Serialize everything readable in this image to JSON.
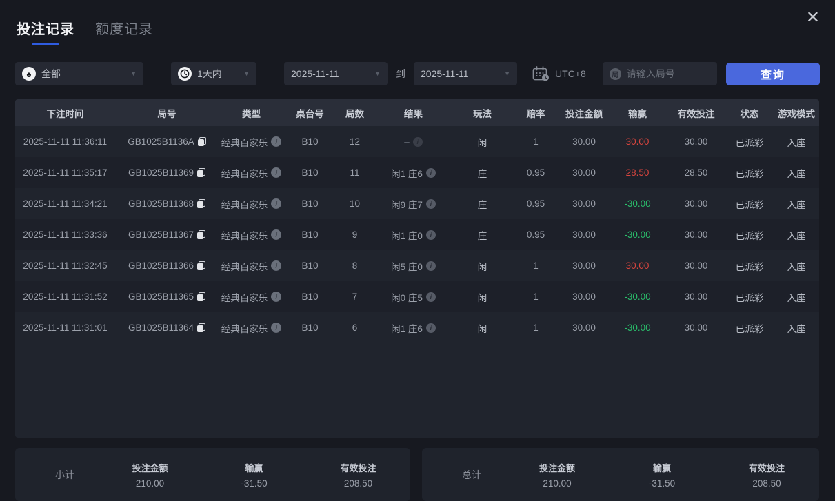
{
  "tabs": [
    {
      "label": "投注记录",
      "active": true
    },
    {
      "label": "额度记录",
      "active": false
    }
  ],
  "close_glyph": "✕",
  "filters": {
    "game_type": {
      "value": "全部",
      "icon": "spade-icon",
      "icon_glyph": "♠"
    },
    "time_range": {
      "value": "1天内",
      "icon": "clock-icon"
    },
    "date_from": "2025-11-11",
    "to_label": "到",
    "date_to": "2025-11-11",
    "timezone": "UTC+8",
    "search": {
      "placeholder": "请输入局号",
      "icon_glyph": "局"
    },
    "query_button": "查询",
    "caret_glyph": "▼"
  },
  "table": {
    "headers": [
      "下注时间",
      "局号",
      "类型",
      "桌台号",
      "局数",
      "结果",
      "玩法",
      "赔率",
      "投注金额",
      "输赢",
      "有效投注",
      "状态",
      "游戏模式"
    ],
    "rows": [
      {
        "time": "2025-11-11 11:36:11",
        "round_id": "GB1025B1136A",
        "type": "经典百家乐",
        "table_no": "B10",
        "shoe": "12",
        "result": "–",
        "result_dim": true,
        "play": "闲",
        "odds": "1",
        "bet_amount": "30.00",
        "win_loss": "30.00",
        "win_loss_sign": "win",
        "valid_bet": "30.00",
        "status": "已派彩",
        "mode": "入座"
      },
      {
        "time": "2025-11-11 11:35:17",
        "round_id": "GB1025B11369",
        "type": "经典百家乐",
        "table_no": "B10",
        "shoe": "11",
        "result": "闲1 庄6",
        "result_dim": false,
        "play": "庄",
        "odds": "0.95",
        "bet_amount": "30.00",
        "win_loss": "28.50",
        "win_loss_sign": "win",
        "valid_bet": "28.50",
        "status": "已派彩",
        "mode": "入座"
      },
      {
        "time": "2025-11-11 11:34:21",
        "round_id": "GB1025B11368",
        "type": "经典百家乐",
        "table_no": "B10",
        "shoe": "10",
        "result": "闲9 庄7",
        "result_dim": false,
        "play": "庄",
        "odds": "0.95",
        "bet_amount": "30.00",
        "win_loss": "-30.00",
        "win_loss_sign": "loss",
        "valid_bet": "30.00",
        "status": "已派彩",
        "mode": "入座"
      },
      {
        "time": "2025-11-11 11:33:36",
        "round_id": "GB1025B11367",
        "type": "经典百家乐",
        "table_no": "B10",
        "shoe": "9",
        "result": "闲1 庄0",
        "result_dim": false,
        "play": "庄",
        "odds": "0.95",
        "bet_amount": "30.00",
        "win_loss": "-30.00",
        "win_loss_sign": "loss",
        "valid_bet": "30.00",
        "status": "已派彩",
        "mode": "入座"
      },
      {
        "time": "2025-11-11 11:32:45",
        "round_id": "GB1025B11366",
        "type": "经典百家乐",
        "table_no": "B10",
        "shoe": "8",
        "result": "闲5 庄0",
        "result_dim": false,
        "play": "闲",
        "odds": "1",
        "bet_amount": "30.00",
        "win_loss": "30.00",
        "win_loss_sign": "win",
        "valid_bet": "30.00",
        "status": "已派彩",
        "mode": "入座"
      },
      {
        "time": "2025-11-11 11:31:52",
        "round_id": "GB1025B11365",
        "type": "经典百家乐",
        "table_no": "B10",
        "shoe": "7",
        "result": "闲0 庄5",
        "result_dim": false,
        "play": "闲",
        "odds": "1",
        "bet_amount": "30.00",
        "win_loss": "-30.00",
        "win_loss_sign": "loss",
        "valid_bet": "30.00",
        "status": "已派彩",
        "mode": "入座"
      },
      {
        "time": "2025-11-11 11:31:01",
        "round_id": "GB1025B11364",
        "type": "经典百家乐",
        "table_no": "B10",
        "shoe": "6",
        "result": "闲1 庄6",
        "result_dim": false,
        "play": "闲",
        "odds": "1",
        "bet_amount": "30.00",
        "win_loss": "-30.00",
        "win_loss_sign": "loss",
        "valid_bet": "30.00",
        "status": "已派彩",
        "mode": "入座"
      }
    ]
  },
  "summary": {
    "subtotal": {
      "label": "小计",
      "bet_amount_label": "投注金额",
      "bet_amount": "210.00",
      "win_loss_label": "输赢",
      "win_loss": "-31.50",
      "win_loss_sign": "loss",
      "valid_bet_label": "有效投注",
      "valid_bet": "208.50"
    },
    "total": {
      "label": "总计",
      "bet_amount_label": "投注金额",
      "bet_amount": "210.00",
      "win_loss_label": "输赢",
      "win_loss": "-31.50",
      "win_loss_sign": "loss",
      "valid_bet_label": "有效投注",
      "valid_bet": "208.50"
    }
  },
  "colors": {
    "accent_blue": "#4a68dd",
    "tab_underline": "#2f5ce0",
    "win_red": "#d8453e",
    "loss_green": "#2ac06c",
    "background": "#171920"
  }
}
